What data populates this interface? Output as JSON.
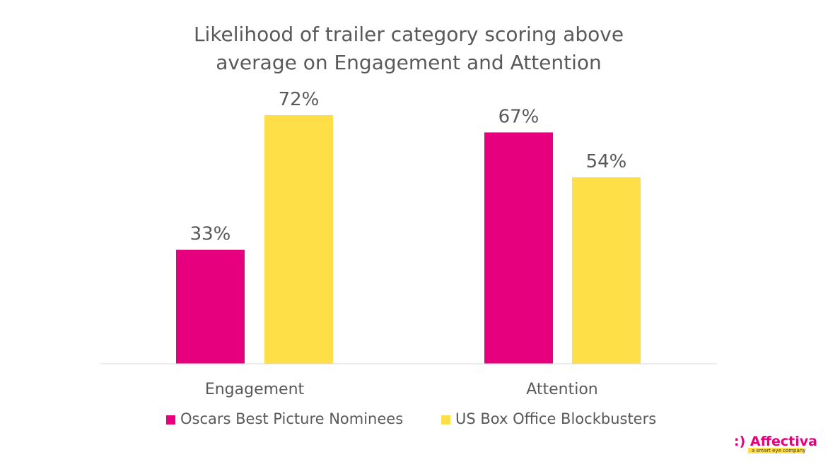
{
  "chart_data": {
    "type": "bar",
    "title_lines": [
      "Likelihood of trailer category scoring above",
      "average on Engagement and Attention"
    ],
    "categories": [
      "Engagement",
      "Attention"
    ],
    "series": [
      {
        "name": "Oscars Best Picture Nominees",
        "values": [
          33,
          67
        ],
        "labels": [
          "33%",
          "67%"
        ],
        "color": "#e6007e"
      },
      {
        "name": "US Box Office Blockbusters",
        "values": [
          72,
          54
        ],
        "labels": [
          "72%",
          "54%"
        ],
        "color": "#ffdf48"
      }
    ],
    "ylim": [
      0,
      80
    ],
    "grid": false,
    "legend_position": "bottom"
  },
  "brand": {
    "logo_text": ":) Affectiva",
    "tagline": "a smart eye company",
    "tag_color": "#ffdf48"
  }
}
